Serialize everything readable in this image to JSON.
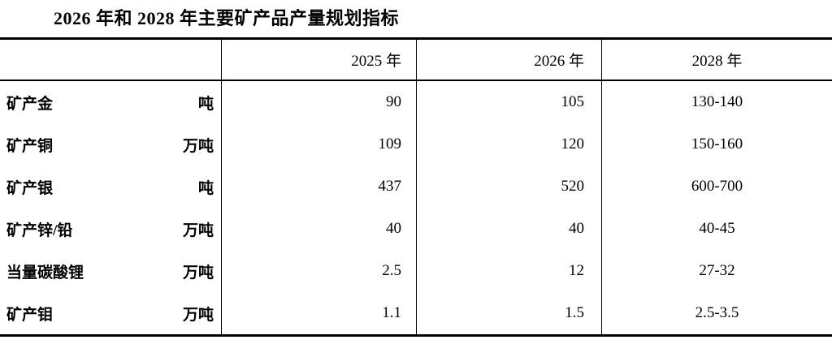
{
  "title": "2026 年和 2028 年主要矿产品产量规划指标",
  "table": {
    "col_2025": "2025 年",
    "col_2026": "2026 年",
    "col_2028": "2028 年",
    "rows": [
      {
        "name": "矿产金",
        "unit": "吨",
        "v2025": "90",
        "v2026": "105",
        "v2028": "130-140"
      },
      {
        "name": "矿产铜",
        "unit": "万吨",
        "v2025": "109",
        "v2026": "120",
        "v2028": "150-160"
      },
      {
        "name": "矿产银",
        "unit": "吨",
        "v2025": "437",
        "v2026": "520",
        "v2028": "600-700"
      },
      {
        "name": "矿产锌/铅",
        "unit": "万吨",
        "v2025": "40",
        "v2026": "40",
        "v2028": "40-45"
      },
      {
        "name": "当量碳酸锂",
        "unit": "万吨",
        "v2025": "2.5",
        "v2026": "12",
        "v2028": "27-32"
      },
      {
        "name": "矿产钼",
        "unit": "万吨",
        "v2025": "1.1",
        "v2026": "1.5",
        "v2028": "2.5-3.5"
      }
    ]
  }
}
